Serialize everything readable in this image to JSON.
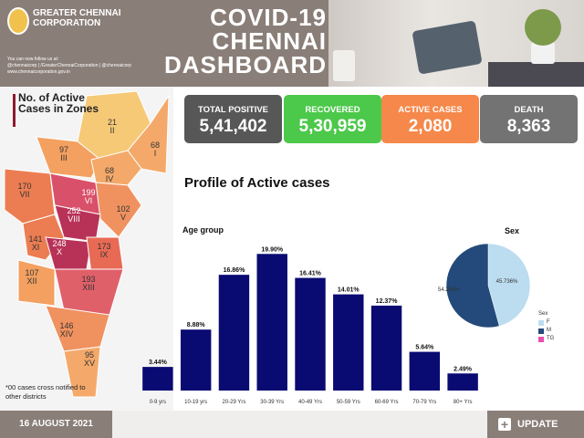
{
  "header": {
    "org_name": "GREATER CHENNAI CORPORATION",
    "follow_text": "You can now follow us at:",
    "handles": "@chennaicorp | /GreaterChennaiCorporation | @chennaicorp",
    "website": "www.chennaicorporation.gov.in",
    "title_line1": "COVID-19",
    "title_line2": "CHENNAI",
    "title_line3": "DASHBOARD"
  },
  "map": {
    "title": "No. of Active Cases in Zones",
    "note": "*00 cases cross notified to other districts",
    "zones": [
      {
        "id": "II",
        "cases": "21"
      },
      {
        "id": "I",
        "cases": "68"
      },
      {
        "id": "III",
        "cases": "97"
      },
      {
        "id": "IV",
        "cases": "68"
      },
      {
        "id": "VII",
        "cases": "170"
      },
      {
        "id": "VI",
        "cases": "199"
      },
      {
        "id": "V",
        "cases": "102"
      },
      {
        "id": "VIII",
        "cases": "252"
      },
      {
        "id": "XI",
        "cases": "141"
      },
      {
        "id": "X",
        "cases": "248"
      },
      {
        "id": "IX",
        "cases": "173"
      },
      {
        "id": "XII",
        "cases": "107"
      },
      {
        "id": "XIII",
        "cases": "193"
      },
      {
        "id": "XIV",
        "cases": "146"
      },
      {
        "id": "XV",
        "cases": "95"
      }
    ]
  },
  "stats": {
    "total_positive": {
      "label": "TOTAL POSITIVE",
      "value": "5,41,402"
    },
    "recovered": {
      "label": "RECOVERED",
      "value": "5,30,959"
    },
    "active": {
      "label": "ACTIVE CASES",
      "value": "2,080"
    },
    "death": {
      "label": "DEATH",
      "value": "8,363"
    }
  },
  "profile_title": "Profile of Active cases",
  "chart_data": [
    {
      "type": "bar",
      "title": "Age group",
      "categories": [
        "0-9 yrs",
        "10-19 yrs",
        "20-29 Yrs",
        "30-39 Yrs",
        "40-49 Yrs",
        "50-59 Yrs",
        "60-69 Yrs",
        "70-79 Yrs",
        "80+ Yrs"
      ],
      "values": [
        3.44,
        8.88,
        16.86,
        19.9,
        16.41,
        14.01,
        12.37,
        5.64,
        2.49
      ],
      "labels": [
        "3.44%",
        "8.88%",
        "16.86%",
        "19.90%",
        "16.41%",
        "14.01%",
        "12.37%",
        "5.64%",
        "2.49%"
      ],
      "ylim": [
        0,
        21
      ],
      "color": "#0a0a73"
    },
    {
      "type": "pie",
      "title": "Sex",
      "legend_title": "Sex",
      "legend_position": "bottom-right",
      "slices": [
        {
          "name": "F",
          "value": 45.736,
          "label": "45.736%",
          "color": "#bcdcf0"
        },
        {
          "name": "M",
          "value": 54.264,
          "label": "54.264%",
          "color": "#234a7a"
        },
        {
          "name": "TG",
          "value": 0,
          "label": "",
          "color": "#e84fb0"
        }
      ]
    }
  ],
  "footer": {
    "date": "16 AUGUST 2021",
    "update_label": "UPDATE",
    "update_icon": "plus-icon"
  }
}
